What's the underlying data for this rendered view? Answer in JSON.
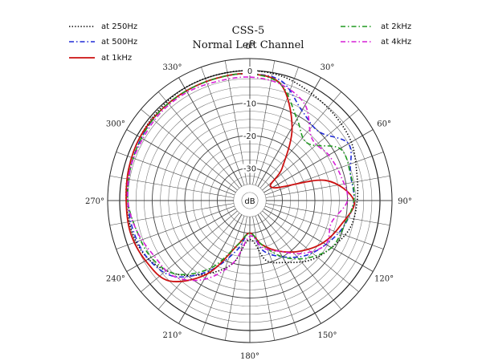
{
  "chart_data": {
    "type": "polar",
    "title": "CSS-5",
    "subtitle": "Normal Left Channel",
    "radial_unit": "dB",
    "radial_range": [
      -40,
      0
    ],
    "ring_labels": [
      "0",
      "-10",
      "-20",
      "-30"
    ],
    "angle_labels": [
      "0°",
      "30°",
      "60°",
      "90°",
      "120°",
      "150°",
      "180°",
      "210°",
      "240°",
      "270°",
      "300°",
      "330°"
    ],
    "theta_step_deg": 30,
    "grid": true,
    "legend_left": [
      "at 250Hz",
      "at 500Hz",
      "at 1kHz"
    ],
    "legend_right": [
      "at 2kHz",
      "at 4kHz"
    ],
    "angles_deg": [
      0,
      15,
      30,
      45,
      60,
      75,
      90,
      105,
      120,
      135,
      150,
      165,
      180,
      195,
      210,
      225,
      240,
      255,
      270,
      285,
      300,
      315,
      330,
      345
    ],
    "series": [
      {
        "name": "at 250Hz",
        "color": "#000000",
        "dash": "dotted",
        "values": [
          0,
          -0.5,
          -2,
          -3,
          -4,
          -6,
          -7,
          -8,
          -11,
          -14,
          -18,
          -21,
          -28,
          -20,
          -14,
          -8,
          -4,
          -2.5,
          -2,
          -1.5,
          -1,
          -0.5,
          0,
          0
        ]
      },
      {
        "name": "at 500Hz",
        "color": "#1f2ad6",
        "dash": "dashdot",
        "values": [
          -1,
          -2,
          -8,
          -10,
          -5,
          -8,
          -8,
          -10,
          -13,
          -16,
          -20,
          -24,
          -30,
          -24,
          -15,
          -7,
          -4,
          -3,
          -2.5,
          -2,
          -1.5,
          -1,
          -1,
          -1
        ]
      },
      {
        "name": "at 1kHz",
        "color": "#cc1111",
        "dash": "solid",
        "values": [
          -1,
          -3,
          -14,
          -26,
          -32,
          -16,
          -8,
          -11,
          -14,
          -18,
          -22,
          -26,
          -30,
          -26,
          -14,
          -5,
          -3,
          -2,
          -2,
          -1.5,
          -1,
          -1,
          -1,
          -1
        ]
      },
      {
        "name": "at 2kHz",
        "color": "#1e9a1e",
        "dash": "dashdot",
        "values": [
          -1,
          -3,
          -11,
          -15,
          -8,
          -8,
          -8,
          -10,
          -11,
          -15,
          -20,
          -26,
          -30,
          -26,
          -16,
          -8,
          -5,
          -4,
          -2.5,
          -2,
          -1.5,
          -1,
          -1,
          -1
        ]
      },
      {
        "name": "at 4kHz",
        "color": "#d61fd6",
        "dash": "dashdot",
        "values": [
          -2,
          -3,
          -6,
          -13,
          -12,
          -11,
          -10,
          -14,
          -13,
          -17,
          -22,
          -25,
          -29,
          -20,
          -12,
          -7,
          -6,
          -4,
          -2.5,
          -2,
          -2,
          -1.5,
          -1.5,
          -2
        ]
      }
    ]
  }
}
